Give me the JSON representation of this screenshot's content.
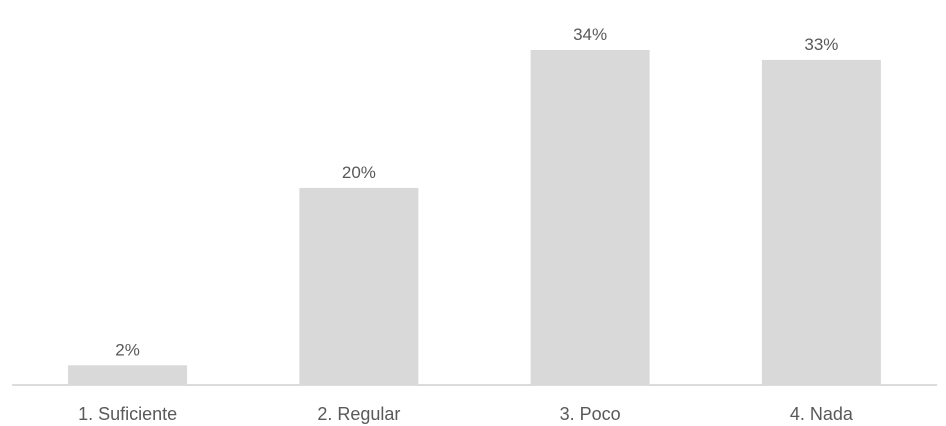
{
  "chart_data": {
    "type": "bar",
    "categories": [
      "1. Suficiente",
      "2. Regular",
      "3. Poco",
      "4. Nada"
    ],
    "values": [
      2,
      20,
      34,
      33
    ],
    "data_labels": [
      "2%",
      "20%",
      "34%",
      "33%"
    ],
    "unit": "%",
    "ylim": [
      0,
      34
    ],
    "grid": false,
    "legend": "none",
    "bar_color": "#d9d9d9",
    "axis_color": "#d0d0d0",
    "label_color": "#595959"
  }
}
